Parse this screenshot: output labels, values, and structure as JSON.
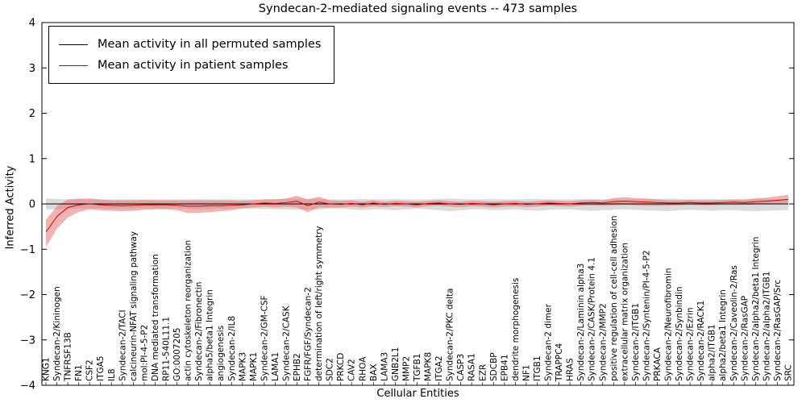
{
  "title": "Syndecan-2-mediated signaling events -- 473 samples",
  "chart_data": {
    "type": "line",
    "title": "Syndecan-2-mediated signaling events -- 473 samples",
    "xlabel": "Cellular Entities",
    "ylabel": "Inferred Activity",
    "ylim": [
      -4,
      4
    ],
    "yticks": [
      4,
      3,
      2,
      1,
      0,
      -1,
      -2,
      -3,
      -4
    ],
    "grid": false,
    "legend_position": "upper left",
    "categories": [
      "KNG1",
      "Syndecan-2/Kininogen",
      "TNFRSF13B",
      "FN1",
      "CSF2",
      "ITGA5",
      "IL8",
      "Syndecan-2/TACI",
      "calcineurin-NFAT signaling pathway",
      "mol:PI-4-5-P2",
      "DNA mediated transformation",
      "RP11-540L11.1",
      "GO:0007205",
      "actin cytoskeleton reorganization",
      "Syndecan-2/Fibronectin",
      "alpha5/beta1 Integrin",
      "angiogenesis",
      "Syndecan-2/IL8",
      "MAPK3",
      "MAPK1",
      "Syndecan-2/GM-CSF",
      "LAMA1",
      "Syndecan-2/CASK",
      "EPHB2",
      "FGFR/FGF/Syndecan-2",
      "determination of left/right symmetry",
      "SDC2",
      "PRKCD",
      "CAV2",
      "RHOA",
      "BAX",
      "LAMA3",
      "GNB2L1",
      "MMP2",
      "TGFB1",
      "MAPK8",
      "ITGA2",
      "Syndecan-2/PKC delta",
      "CASP3",
      "RASA1",
      "EZR",
      "SDCBP",
      "EPB41",
      "dendrite morphogenesis",
      "NF1",
      "ITGB1",
      "Syndecan-2 dimer",
      "TRAPPC4",
      "HRAS",
      "Syndecan-2/Laminin alpha3",
      "Syndecan-2/CASK/Protein 4.1",
      "Syndecan-2/MMP2",
      "positive regulation of cell-cell adhesion",
      "extracellular matrix organization",
      "Syndecan-2/ITGB1",
      "Syndecan-2/Syntenin/PI-4-5-P2",
      "PRKACA",
      "Syndecan-2/Neurofibromin",
      "Syndecan-2/Synbindin",
      "Syndecan-2/Ezrin",
      "Syndecan-2/RACK1",
      "alpha2/ITGB1",
      "alpha2/beta1 Integrin",
      "Syndecan-2/Caveolin-2/Ras",
      "Syndecan-2/RasGAP",
      "Syndecan-2/alpha2/beta1 Integrin",
      "Syndecan-2/alpha2/ITGB1",
      "Syndecan-2/RasGAP/Src",
      "SRC"
    ],
    "series": [
      {
        "name": "Mean activity in all permuted samples",
        "color": "#000000",
        "band_color": "#bdbdbd",
        "band_opacity": 0.55,
        "values": [
          0,
          0,
          0,
          0,
          0,
          0,
          0,
          0,
          0,
          0,
          0,
          0,
          0,
          0,
          0,
          0,
          0,
          0,
          0,
          0,
          0,
          0,
          0,
          0,
          0,
          0,
          0,
          0,
          0,
          0,
          0,
          0,
          0,
          0,
          0,
          0,
          0,
          0,
          0,
          0,
          0,
          0,
          0,
          0,
          0,
          0,
          0,
          0,
          0,
          0,
          0,
          0,
          0,
          0,
          0,
          0,
          0,
          0,
          0,
          0,
          0,
          0,
          0,
          0,
          0,
          0,
          0,
          0,
          0
        ],
        "band_lo": [
          -0.12,
          -0.12,
          -0.11,
          -0.1,
          -0.1,
          -0.1,
          -0.11,
          -0.1,
          -0.1,
          -0.1,
          -0.1,
          -0.1,
          -0.1,
          -0.11,
          -0.12,
          -0.11,
          -0.1,
          -0.1,
          -0.1,
          -0.1,
          -0.11,
          -0.12,
          -0.12,
          -0.13,
          -0.12,
          -0.12,
          -0.1,
          -0.1,
          -0.12,
          -0.14,
          -0.12,
          -0.12,
          -0.14,
          -0.12,
          -0.1,
          -0.12,
          -0.14,
          -0.16,
          -0.14,
          -0.12,
          -0.12,
          -0.14,
          -0.13,
          -0.12,
          -0.14,
          -0.15,
          -0.13,
          -0.12,
          -0.12,
          -0.14,
          -0.15,
          -0.14,
          -0.13,
          -0.12,
          -0.13,
          -0.14,
          -0.15,
          -0.16,
          -0.14,
          -0.13,
          -0.14,
          -0.15,
          -0.14,
          -0.14,
          -0.15,
          -0.16,
          -0.15,
          -0.14,
          -0.14
        ],
        "band_hi": [
          0.12,
          0.11,
          0.1,
          0.1,
          0.1,
          0.1,
          0.1,
          0.1,
          0.1,
          0.1,
          0.1,
          0.1,
          0.1,
          0.1,
          0.11,
          0.1,
          0.1,
          0.1,
          0.1,
          0.1,
          0.1,
          0.11,
          0.11,
          0.12,
          0.11,
          0.11,
          0.1,
          0.1,
          0.1,
          0.11,
          0.1,
          0.1,
          0.11,
          0.1,
          0.1,
          0.1,
          0.11,
          0.12,
          0.11,
          0.1,
          0.1,
          0.11,
          0.1,
          0.1,
          0.11,
          0.11,
          0.1,
          0.1,
          0.1,
          0.11,
          0.11,
          0.1,
          0.1,
          0.1,
          0.1,
          0.11,
          0.11,
          0.12,
          0.11,
          0.1,
          0.11,
          0.11,
          0.1,
          0.1,
          0.11,
          0.12,
          0.11,
          0.1,
          0.1
        ]
      },
      {
        "name": "Mean activity in patient samples",
        "color": "#cc0000",
        "band_color": "#e87272",
        "band_opacity": 0.55,
        "values": [
          -0.62,
          -0.28,
          -0.08,
          -0.02,
          0,
          -0.02,
          -0.03,
          -0.04,
          -0.03,
          -0.02,
          -0.02,
          -0.02,
          -0.03,
          -0.05,
          -0.05,
          -0.04,
          -0.04,
          -0.03,
          -0.02,
          0,
          0.02,
          0.01,
          0.03,
          0.06,
          -0.04,
          0.04,
          0,
          -0.01,
          0.01,
          -0.02,
          0.02,
          -0.01,
          0.01,
          0,
          -0.02,
          0.01,
          0.02,
          0,
          -0.01,
          0.01,
          0,
          -0.02,
          0,
          0.01,
          -0.01,
          0,
          0.02,
          0.01,
          0,
          0.02,
          0.03,
          0.02,
          0.05,
          0.06,
          0.05,
          0.04,
          0.03,
          0.02,
          0.02,
          0.03,
          0.02,
          0.02,
          0.03,
          0.04,
          0.03,
          0.05,
          0.06,
          0.08,
          0.1
        ],
        "band_lo": [
          -0.95,
          -0.55,
          -0.3,
          -0.18,
          -0.12,
          -0.14,
          -0.15,
          -0.16,
          -0.15,
          -0.13,
          -0.12,
          -0.12,
          -0.14,
          -0.2,
          -0.2,
          -0.18,
          -0.16,
          -0.14,
          -0.1,
          -0.08,
          -0.06,
          -0.08,
          -0.06,
          -0.08,
          -0.18,
          -0.08,
          -0.08,
          -0.08,
          -0.06,
          -0.08,
          -0.05,
          -0.07,
          -0.05,
          -0.06,
          -0.08,
          -0.05,
          -0.04,
          -0.06,
          -0.07,
          -0.05,
          -0.06,
          -0.08,
          -0.06,
          -0.05,
          -0.07,
          -0.06,
          -0.04,
          -0.05,
          -0.06,
          -0.04,
          -0.03,
          -0.04,
          -0.03,
          -0.02,
          -0.03,
          -0.04,
          -0.04,
          -0.04,
          -0.03,
          -0.02,
          -0.03,
          -0.03,
          -0.02,
          -0.02,
          -0.02,
          -0.01,
          0,
          0.01,
          0.02
        ],
        "band_hi": [
          -0.35,
          -0.05,
          0.1,
          0.12,
          0.12,
          0.1,
          0.08,
          0.08,
          0.08,
          0.09,
          0.08,
          0.08,
          0.08,
          0.08,
          0.08,
          0.08,
          0.08,
          0.08,
          0.07,
          0.08,
          0.1,
          0.1,
          0.12,
          0.18,
          0.1,
          0.16,
          0.08,
          0.07,
          0.08,
          0.05,
          0.08,
          0.05,
          0.07,
          0.06,
          0.05,
          0.07,
          0.08,
          0.06,
          0.05,
          0.07,
          0.06,
          0.05,
          0.06,
          0.07,
          0.05,
          0.06,
          0.08,
          0.07,
          0.06,
          0.08,
          0.09,
          0.08,
          0.13,
          0.15,
          0.13,
          0.12,
          0.1,
          0.08,
          0.08,
          0.09,
          0.08,
          0.08,
          0.09,
          0.1,
          0.09,
          0.12,
          0.14,
          0.17,
          0.2
        ]
      }
    ]
  }
}
